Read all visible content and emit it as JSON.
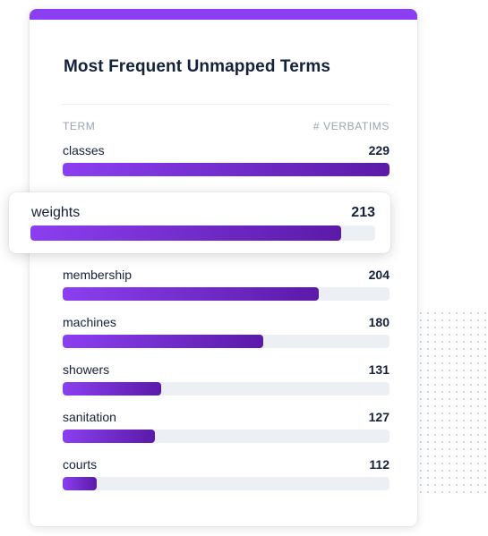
{
  "card": {
    "title": "Most Frequent Unmapped Terms",
    "column_term": "TERM",
    "column_count": "# VERBATIMS",
    "accent_color": "#8b3ff0"
  },
  "rows": [
    {
      "term": "classes",
      "count": "229",
      "fraction": 1.0
    },
    {
      "term": "weights",
      "count": "213",
      "fraction": 0.9,
      "highlighted": true
    },
    {
      "term": "membership",
      "count": "204",
      "fraction": 0.784
    },
    {
      "term": "machines",
      "count": "180",
      "fraction": 0.614
    },
    {
      "term": "showers",
      "count": "131",
      "fraction": 0.301
    },
    {
      "term": "sanitation",
      "count": "127",
      "fraction": 0.282
    },
    {
      "term": "courts",
      "count": "112",
      "fraction": 0.104
    }
  ]
}
